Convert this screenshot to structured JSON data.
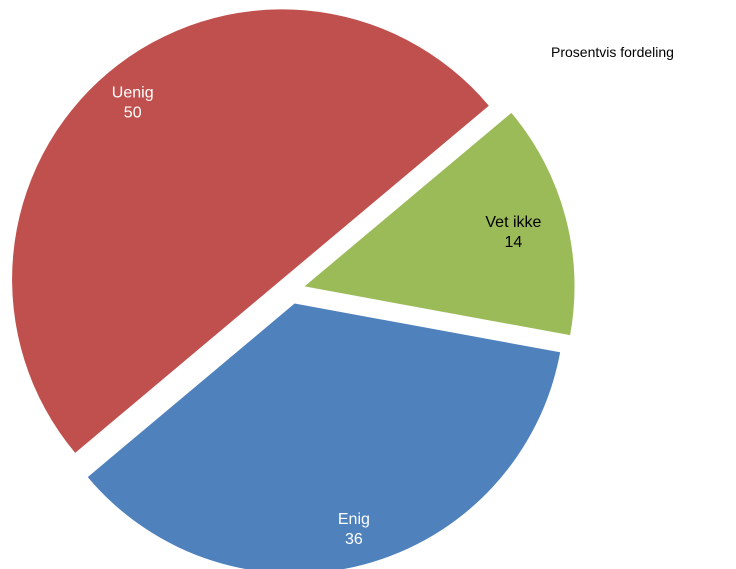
{
  "chart_data": {
    "type": "pie",
    "title": "Prosentvis fordeling",
    "slices": [
      {
        "label": "Vet ikke",
        "value": 14,
        "color": "#9BBB59",
        "label_color": "#000000"
      },
      {
        "label": "Enig",
        "value": 36,
        "color": "#4F81BD",
        "label_color": "#ffffff"
      },
      {
        "label": "Uenig",
        "value": 50,
        "color": "#C0504D",
        "label_color": "#ffffff"
      }
    ],
    "exploded": true,
    "legend": "none"
  }
}
